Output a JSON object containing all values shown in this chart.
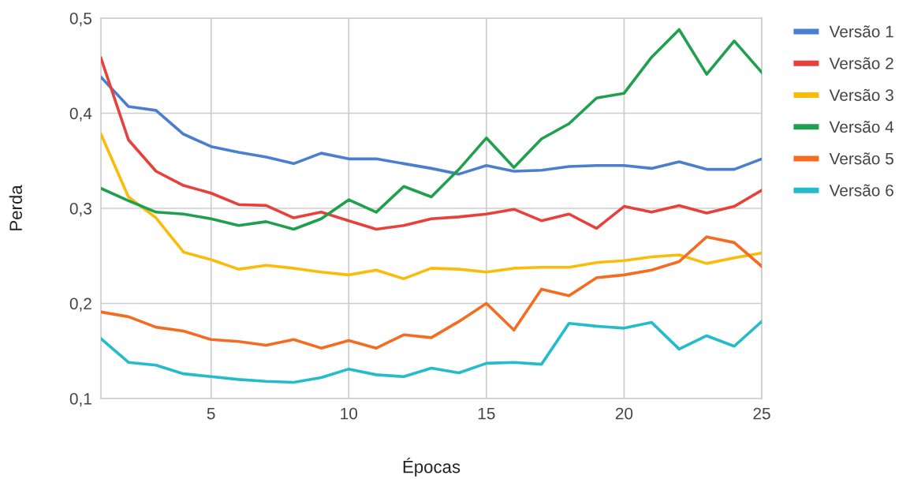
{
  "chart_data": {
    "type": "line",
    "xlabel": "Épocas",
    "ylabel": "Perda",
    "x": [
      1,
      2,
      3,
      4,
      5,
      6,
      7,
      8,
      9,
      10,
      11,
      12,
      13,
      14,
      15,
      16,
      17,
      18,
      19,
      20,
      21,
      22,
      23,
      24,
      25
    ],
    "xlim": [
      1,
      25
    ],
    "xticks": [
      5,
      10,
      15,
      20,
      25
    ],
    "ylim": [
      0.1,
      0.5
    ],
    "yticks": [
      {
        "value": 0.1,
        "label": "0,1"
      },
      {
        "value": 0.2,
        "label": "0,2"
      },
      {
        "value": 0.3,
        "label": "0,3"
      },
      {
        "value": 0.4,
        "label": "0,4"
      },
      {
        "value": 0.5,
        "label": "0,5"
      }
    ],
    "grid": true,
    "legend": "right",
    "marker": "none",
    "line_style": "solid",
    "series": [
      {
        "name": "Versão 1",
        "color": "#4a7fcf",
        "values": [
          0.438,
          0.407,
          0.403,
          0.378,
          0.365,
          0.359,
          0.354,
          0.347,
          0.358,
          0.352,
          0.352,
          0.347,
          0.342,
          0.336,
          0.345,
          0.339,
          0.34,
          0.344,
          0.345,
          0.345,
          0.342,
          0.349,
          0.341,
          0.341,
          0.352
        ]
      },
      {
        "name": "Versão 2",
        "color": "#e8403a",
        "values": [
          0.458,
          0.372,
          0.339,
          0.324,
          0.316,
          0.304,
          0.303,
          0.29,
          0.296,
          0.287,
          0.278,
          0.282,
          0.289,
          0.291,
          0.294,
          0.299,
          0.287,
          0.294,
          0.279,
          0.302,
          0.296,
          0.303,
          0.295,
          0.302,
          0.319
        ]
      },
      {
        "name": "Versão 3",
        "color": "#fbbc09",
        "values": [
          0.378,
          0.312,
          0.29,
          0.254,
          0.246,
          0.236,
          0.24,
          0.237,
          0.233,
          0.23,
          0.235,
          0.226,
          0.237,
          0.236,
          0.233,
          0.237,
          0.238,
          0.238,
          0.243,
          0.245,
          0.249,
          0.251,
          0.242,
          0.248,
          0.253
        ]
      },
      {
        "name": "Versão 4",
        "color": "#1fa04e",
        "values": [
          0.321,
          0.308,
          0.296,
          0.294,
          0.289,
          0.282,
          0.286,
          0.278,
          0.289,
          0.309,
          0.296,
          0.323,
          0.312,
          0.341,
          0.374,
          0.343,
          0.373,
          0.389,
          0.416,
          0.421,
          0.459,
          0.488,
          0.441,
          0.476,
          0.443
        ]
      },
      {
        "name": "Versão 5",
        "color": "#f56b1f",
        "values": [
          0.191,
          0.186,
          0.175,
          0.171,
          0.162,
          0.16,
          0.156,
          0.162,
          0.153,
          0.161,
          0.153,
          0.167,
          0.164,
          0.181,
          0.2,
          0.172,
          0.215,
          0.208,
          0.227,
          0.23,
          0.235,
          0.244,
          0.27,
          0.264,
          0.239
        ]
      },
      {
        "name": "Versão 6",
        "color": "#24bccb",
        "values": [
          0.163,
          0.138,
          0.135,
          0.126,
          0.123,
          0.12,
          0.118,
          0.117,
          0.122,
          0.131,
          0.125,
          0.123,
          0.132,
          0.127,
          0.137,
          0.138,
          0.136,
          0.179,
          0.176,
          0.174,
          0.18,
          0.152,
          0.166,
          0.155,
          0.181
        ]
      }
    ]
  }
}
